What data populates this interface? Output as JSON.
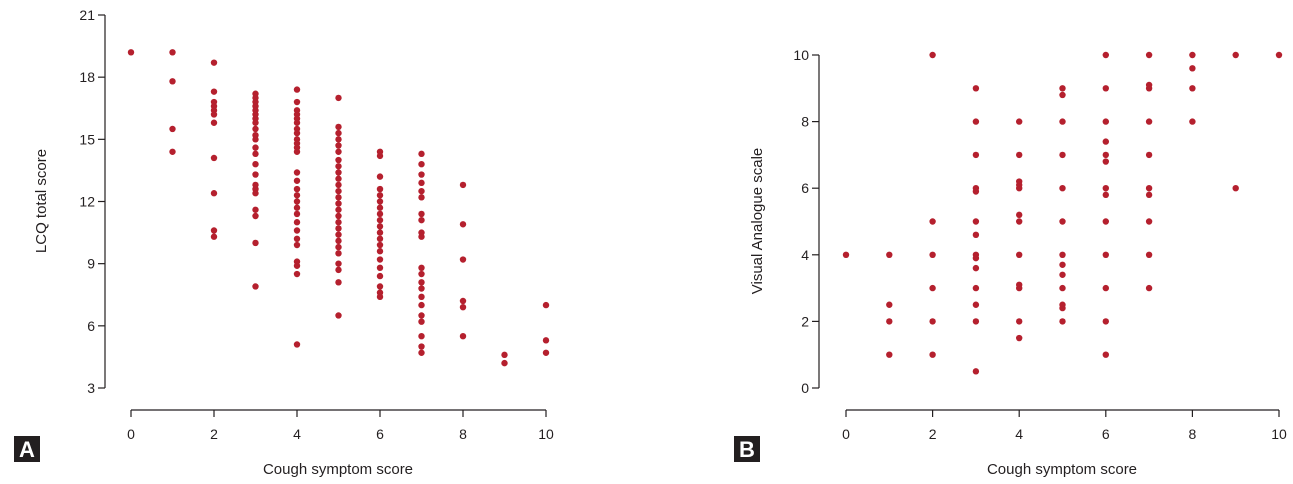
{
  "colors": {
    "point": "#b5202e",
    "axis": "#231f20",
    "badge": "#231f20"
  },
  "chart_data": [
    {
      "type": "scatter",
      "panel_label": "A",
      "xlabel": "Cough symptom score",
      "ylabel": "LCQ total score",
      "xlim": [
        0,
        10
      ],
      "ylim": [
        3,
        21
      ],
      "xticks": [
        0,
        2,
        4,
        6,
        8,
        10
      ],
      "yticks": [
        3,
        6,
        9,
        12,
        15,
        18,
        21
      ],
      "grid": false,
      "points": [
        [
          0,
          19.2
        ],
        [
          1,
          19.2
        ],
        [
          1,
          17.8
        ],
        [
          1,
          15.5
        ],
        [
          1,
          14.4
        ],
        [
          2,
          18.7
        ],
        [
          2,
          17.3
        ],
        [
          2,
          16.8
        ],
        [
          2,
          16.6
        ],
        [
          2,
          16.4
        ],
        [
          2,
          16.2
        ],
        [
          2,
          15.8
        ],
        [
          2,
          14.1
        ],
        [
          2,
          12.4
        ],
        [
          2,
          10.6
        ],
        [
          2,
          10.3
        ],
        [
          3,
          17.2
        ],
        [
          3,
          17.0
        ],
        [
          3,
          16.8
        ],
        [
          3,
          16.6
        ],
        [
          3,
          16.4
        ],
        [
          3,
          16.2
        ],
        [
          3,
          16.0
        ],
        [
          3,
          15.8
        ],
        [
          3,
          15.5
        ],
        [
          3,
          15.2
        ],
        [
          3,
          15.0
        ],
        [
          3,
          14.6
        ],
        [
          3,
          14.3
        ],
        [
          3,
          13.8
        ],
        [
          3,
          13.3
        ],
        [
          3,
          12.8
        ],
        [
          3,
          12.6
        ],
        [
          3,
          12.4
        ],
        [
          3,
          11.6
        ],
        [
          3,
          11.3
        ],
        [
          3,
          10.0
        ],
        [
          3,
          7.9
        ],
        [
          4,
          17.4
        ],
        [
          4,
          16.8
        ],
        [
          4,
          16.4
        ],
        [
          4,
          16.2
        ],
        [
          4,
          16.0
        ],
        [
          4,
          15.8
        ],
        [
          4,
          15.5
        ],
        [
          4,
          15.3
        ],
        [
          4,
          15.0
        ],
        [
          4,
          14.8
        ],
        [
          4,
          14.6
        ],
        [
          4,
          14.4
        ],
        [
          4,
          13.4
        ],
        [
          4,
          13.0
        ],
        [
          4,
          12.6
        ],
        [
          4,
          12.3
        ],
        [
          4,
          12.0
        ],
        [
          4,
          11.7
        ],
        [
          4,
          11.4
        ],
        [
          4,
          11.0
        ],
        [
          4,
          10.6
        ],
        [
          4,
          10.2
        ],
        [
          4,
          9.9
        ],
        [
          4,
          9.1
        ],
        [
          4,
          8.9
        ],
        [
          4,
          8.5
        ],
        [
          4,
          5.1
        ],
        [
          5,
          17.0
        ],
        [
          5,
          15.6
        ],
        [
          5,
          15.3
        ],
        [
          5,
          15.0
        ],
        [
          5,
          14.7
        ],
        [
          5,
          14.4
        ],
        [
          5,
          14.0
        ],
        [
          5,
          13.7
        ],
        [
          5,
          13.4
        ],
        [
          5,
          13.1
        ],
        [
          5,
          12.8
        ],
        [
          5,
          12.5
        ],
        [
          5,
          12.2
        ],
        [
          5,
          11.9
        ],
        [
          5,
          11.6
        ],
        [
          5,
          11.3
        ],
        [
          5,
          11.0
        ],
        [
          5,
          10.7
        ],
        [
          5,
          10.4
        ],
        [
          5,
          10.1
        ],
        [
          5,
          9.8
        ],
        [
          5,
          9.5
        ],
        [
          5,
          9.0
        ],
        [
          5,
          8.7
        ],
        [
          5,
          8.1
        ],
        [
          5,
          6.5
        ],
        [
          6,
          14.4
        ],
        [
          6,
          14.2
        ],
        [
          6,
          13.2
        ],
        [
          6,
          12.6
        ],
        [
          6,
          12.3
        ],
        [
          6,
          12.0
        ],
        [
          6,
          11.7
        ],
        [
          6,
          11.4
        ],
        [
          6,
          11.1
        ],
        [
          6,
          10.8
        ],
        [
          6,
          10.5
        ],
        [
          6,
          10.2
        ],
        [
          6,
          9.9
        ],
        [
          6,
          9.6
        ],
        [
          6,
          9.2
        ],
        [
          6,
          8.8
        ],
        [
          6,
          8.4
        ],
        [
          6,
          7.9
        ],
        [
          6,
          7.6
        ],
        [
          6,
          7.4
        ],
        [
          7,
          14.3
        ],
        [
          7,
          13.8
        ],
        [
          7,
          13.3
        ],
        [
          7,
          12.9
        ],
        [
          7,
          12.5
        ],
        [
          7,
          12.2
        ],
        [
          7,
          11.4
        ],
        [
          7,
          11.1
        ],
        [
          7,
          10.5
        ],
        [
          7,
          10.3
        ],
        [
          7,
          8.8
        ],
        [
          7,
          8.5
        ],
        [
          7,
          8.1
        ],
        [
          7,
          7.8
        ],
        [
          7,
          7.4
        ],
        [
          7,
          7.0
        ],
        [
          7,
          6.5
        ],
        [
          7,
          6.2
        ],
        [
          7,
          5.5
        ],
        [
          7,
          5.0
        ],
        [
          7,
          4.7
        ],
        [
          8,
          12.8
        ],
        [
          8,
          10.9
        ],
        [
          8,
          9.2
        ],
        [
          8,
          7.2
        ],
        [
          8,
          6.9
        ],
        [
          8,
          5.5
        ],
        [
          9,
          4.6
        ],
        [
          9,
          4.2
        ],
        [
          10,
          7.0
        ],
        [
          10,
          5.3
        ],
        [
          10,
          4.7
        ]
      ]
    },
    {
      "type": "scatter",
      "panel_label": "B",
      "xlabel": "Cough symptom score",
      "ylabel": "Visual Analogue scale",
      "xlim": [
        0,
        10
      ],
      "ylim": [
        0,
        10
      ],
      "xticks": [
        0,
        2,
        4,
        6,
        8,
        10
      ],
      "yticks": [
        0,
        2,
        4,
        6,
        8,
        10
      ],
      "grid": false,
      "points": [
        [
          0,
          4
        ],
        [
          1,
          4
        ],
        [
          1,
          2.5
        ],
        [
          1,
          2
        ],
        [
          1,
          1
        ],
        [
          2,
          10
        ],
        [
          2,
          5
        ],
        [
          2,
          4
        ],
        [
          2,
          3
        ],
        [
          2,
          2
        ],
        [
          2,
          1
        ],
        [
          3,
          9
        ],
        [
          3,
          8
        ],
        [
          3,
          7
        ],
        [
          3,
          6
        ],
        [
          3,
          5.9
        ],
        [
          3,
          5
        ],
        [
          3,
          4.6
        ],
        [
          3,
          4
        ],
        [
          3,
          3.9
        ],
        [
          3,
          3.6
        ],
        [
          3,
          3
        ],
        [
          3,
          2.5
        ],
        [
          3,
          2
        ],
        [
          3,
          0.5
        ],
        [
          4,
          8
        ],
        [
          4,
          7
        ],
        [
          4,
          6.2
        ],
        [
          4,
          6.1
        ],
        [
          4,
          6
        ],
        [
          4,
          5.2
        ],
        [
          4,
          5
        ],
        [
          4,
          4
        ],
        [
          4,
          3.1
        ],
        [
          4,
          3
        ],
        [
          4,
          2
        ],
        [
          4,
          1.5
        ],
        [
          5,
          9
        ],
        [
          5,
          8.8
        ],
        [
          5,
          8
        ],
        [
          5,
          7
        ],
        [
          5,
          6
        ],
        [
          5,
          5
        ],
        [
          5,
          4
        ],
        [
          5,
          3.7
        ],
        [
          5,
          3.4
        ],
        [
          5,
          3
        ],
        [
          5,
          2.5
        ],
        [
          5,
          2.4
        ],
        [
          5,
          2
        ],
        [
          6,
          10
        ],
        [
          6,
          9
        ],
        [
          6,
          8
        ],
        [
          6,
          7.4
        ],
        [
          6,
          7
        ],
        [
          6,
          6.8
        ],
        [
          6,
          6
        ],
        [
          6,
          5.8
        ],
        [
          6,
          5
        ],
        [
          6,
          4
        ],
        [
          6,
          3
        ],
        [
          6,
          2
        ],
        [
          6,
          1
        ],
        [
          7,
          10
        ],
        [
          7,
          9.1
        ],
        [
          7,
          9
        ],
        [
          7,
          8
        ],
        [
          7,
          7
        ],
        [
          7,
          6
        ],
        [
          7,
          5.8
        ],
        [
          7,
          5
        ],
        [
          7,
          4
        ],
        [
          7,
          3
        ],
        [
          8,
          10
        ],
        [
          8,
          9.6
        ],
        [
          8,
          9
        ],
        [
          8,
          8
        ],
        [
          9,
          10
        ],
        [
          9,
          6
        ],
        [
          10,
          10
        ]
      ]
    }
  ]
}
